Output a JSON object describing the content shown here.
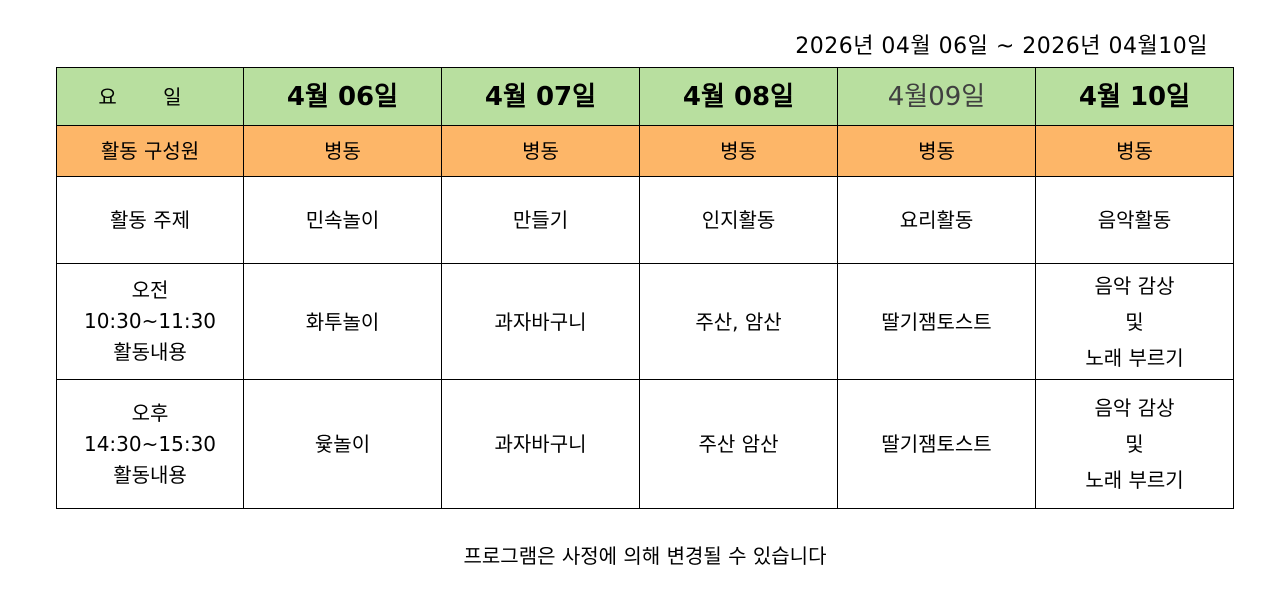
{
  "date_range": "2026년 04월 06일 ~ 2026년 04월10일",
  "header": {
    "label": "요 일",
    "days": [
      "4월 06일",
      "4월 07일",
      "4월 08일",
      "4월09일",
      "4월 10일"
    ]
  },
  "members": {
    "label": "활동 구성원",
    "values": [
      "병동",
      "병동",
      "병동",
      "병동",
      "병동"
    ]
  },
  "theme": {
    "label": "활동 주제",
    "values": [
      "민속놀이",
      "만들기",
      "인지활동",
      "요리활동",
      "음악활동"
    ]
  },
  "morning": {
    "label": [
      "오전",
      "10:30~11:30",
      "활동내용"
    ],
    "values": [
      [
        "화투놀이"
      ],
      [
        "과자바구니"
      ],
      [
        "주산, 암산"
      ],
      [
        "딸기잼토스트"
      ],
      [
        "음악 감상",
        "및",
        "노래 부르기"
      ]
    ]
  },
  "afternoon": {
    "label": [
      "오후",
      "14:30~15:30",
      "활동내용"
    ],
    "values": [
      [
        "윷놀이"
      ],
      [
        "과자바구니"
      ],
      [
        "주산 암산"
      ],
      [
        "딸기잼토스트"
      ],
      [
        "음악 감상",
        "및",
        "노래 부르기"
      ]
    ]
  },
  "note": "프로그램은 사정에 의해 변경될 수 있습니다",
  "colors": {
    "header_bg": "#b8df9f",
    "members_bg": "#fdb668"
  }
}
